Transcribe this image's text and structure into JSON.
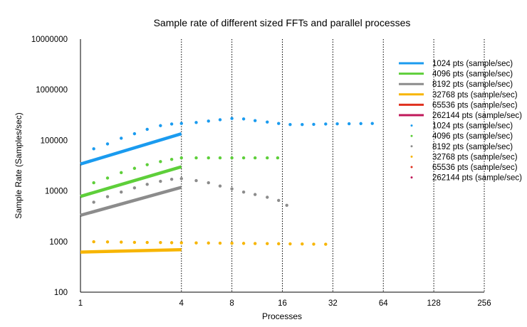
{
  "chart_data": {
    "type": "scatter",
    "title": "Sample rate of different sized FFTs and parallel processes",
    "xlabel": "Processes",
    "ylabel": "Sample Rate (Samples/sec)",
    "x_scale": "log2",
    "y_scale": "log10",
    "xlim": [
      1,
      256
    ],
    "ylim": [
      100,
      10000000
    ],
    "x_ticks": [
      "1",
      "4",
      "8",
      "16",
      "32",
      "64",
      "128",
      "256"
    ],
    "y_ticks": [
      "100",
      "1000",
      "10000",
      "100000",
      "1000000",
      "10000000"
    ],
    "legend_position": "right",
    "trend_series": [
      {
        "name": "1024 pts (sample/sec)",
        "color": "#1a9bef",
        "x": [
          1,
          4
        ],
        "y": [
          34000,
          135000
        ]
      },
      {
        "name": "4096 pts (sample/sec)",
        "color": "#5ecf3a",
        "x": [
          1,
          4
        ],
        "y": [
          7800,
          30000
        ]
      },
      {
        "name": "8192 pts (sample/sec)",
        "color": "#8c8c8c",
        "x": [
          1,
          4
        ],
        "y": [
          3300,
          11800
        ]
      },
      {
        "name": "32768 pts (sample/sec)",
        "color": "#f7b500",
        "x": [
          1,
          4
        ],
        "y": [
          620,
          690
        ]
      },
      {
        "name": "65536 pts (sample/sec)",
        "color": "#e0311f",
        "x": [],
        "y": []
      },
      {
        "name": "262144 pts (sample/sec)",
        "color": "#c0185a",
        "x": [],
        "y": []
      }
    ],
    "point_series": [
      {
        "name": "1024 pts (sample/sec)",
        "color": "#1a9bef",
        "x": [
          1.2,
          1.45,
          1.75,
          2.1,
          2.5,
          3,
          3.5,
          4,
          4.9,
          5.8,
          6.8,
          8,
          9.4,
          11,
          13,
          15.2,
          17.8,
          21,
          24.6,
          29,
          34,
          40,
          47,
          55
        ],
        "y": [
          68000,
          85000,
          110000,
          135000,
          165000,
          195000,
          210000,
          215000,
          225000,
          240000,
          255000,
          270000,
          265000,
          245000,
          230000,
          215000,
          205000,
          205000,
          207000,
          210000,
          212000,
          213000,
          214000,
          215000
        ]
      },
      {
        "name": "4096 pts (sample/sec)",
        "color": "#5ecf3a",
        "x": [
          1.2,
          1.45,
          1.75,
          2.1,
          2.5,
          3,
          3.5,
          4,
          4.9,
          5.8,
          6.8,
          8,
          9.4,
          11,
          13,
          15
        ],
        "y": [
          14500,
          18000,
          23000,
          28000,
          33000,
          38000,
          42000,
          45000,
          45000,
          45000,
          45000,
          45000,
          45000,
          45000,
          45000,
          45000
        ]
      },
      {
        "name": "8192 pts (sample/sec)",
        "color": "#8c8c8c",
        "x": [
          1.2,
          1.45,
          1.75,
          2.1,
          2.5,
          3,
          3.5,
          4,
          4.9,
          5.8,
          6.8,
          8,
          9.4,
          11,
          13,
          15.2,
          17
        ],
        "y": [
          6000,
          7700,
          9500,
          11500,
          13500,
          15500,
          17000,
          17500,
          16000,
          14500,
          12500,
          11000,
          9500,
          8500,
          7500,
          6500,
          5200
        ]
      },
      {
        "name": "32768 pts (sample/sec)",
        "color": "#f7b500",
        "x": [
          1.2,
          1.45,
          1.75,
          2.1,
          2.5,
          3,
          3.5,
          4,
          4.9,
          5.8,
          6.8,
          8,
          9.4,
          11,
          13,
          15.2,
          17.8,
          21,
          24.6,
          29
        ],
        "y": [
          990,
          985,
          975,
          965,
          960,
          955,
          950,
          945,
          940,
          935,
          930,
          925,
          920,
          915,
          910,
          905,
          900,
          895,
          890,
          885
        ]
      },
      {
        "name": "65536 pts (sample/sec)",
        "color": "#e0311f",
        "x": [],
        "y": []
      },
      {
        "name": "262144 pts (sample/sec)",
        "color": "#c0185a",
        "x": [],
        "y": []
      }
    ]
  }
}
